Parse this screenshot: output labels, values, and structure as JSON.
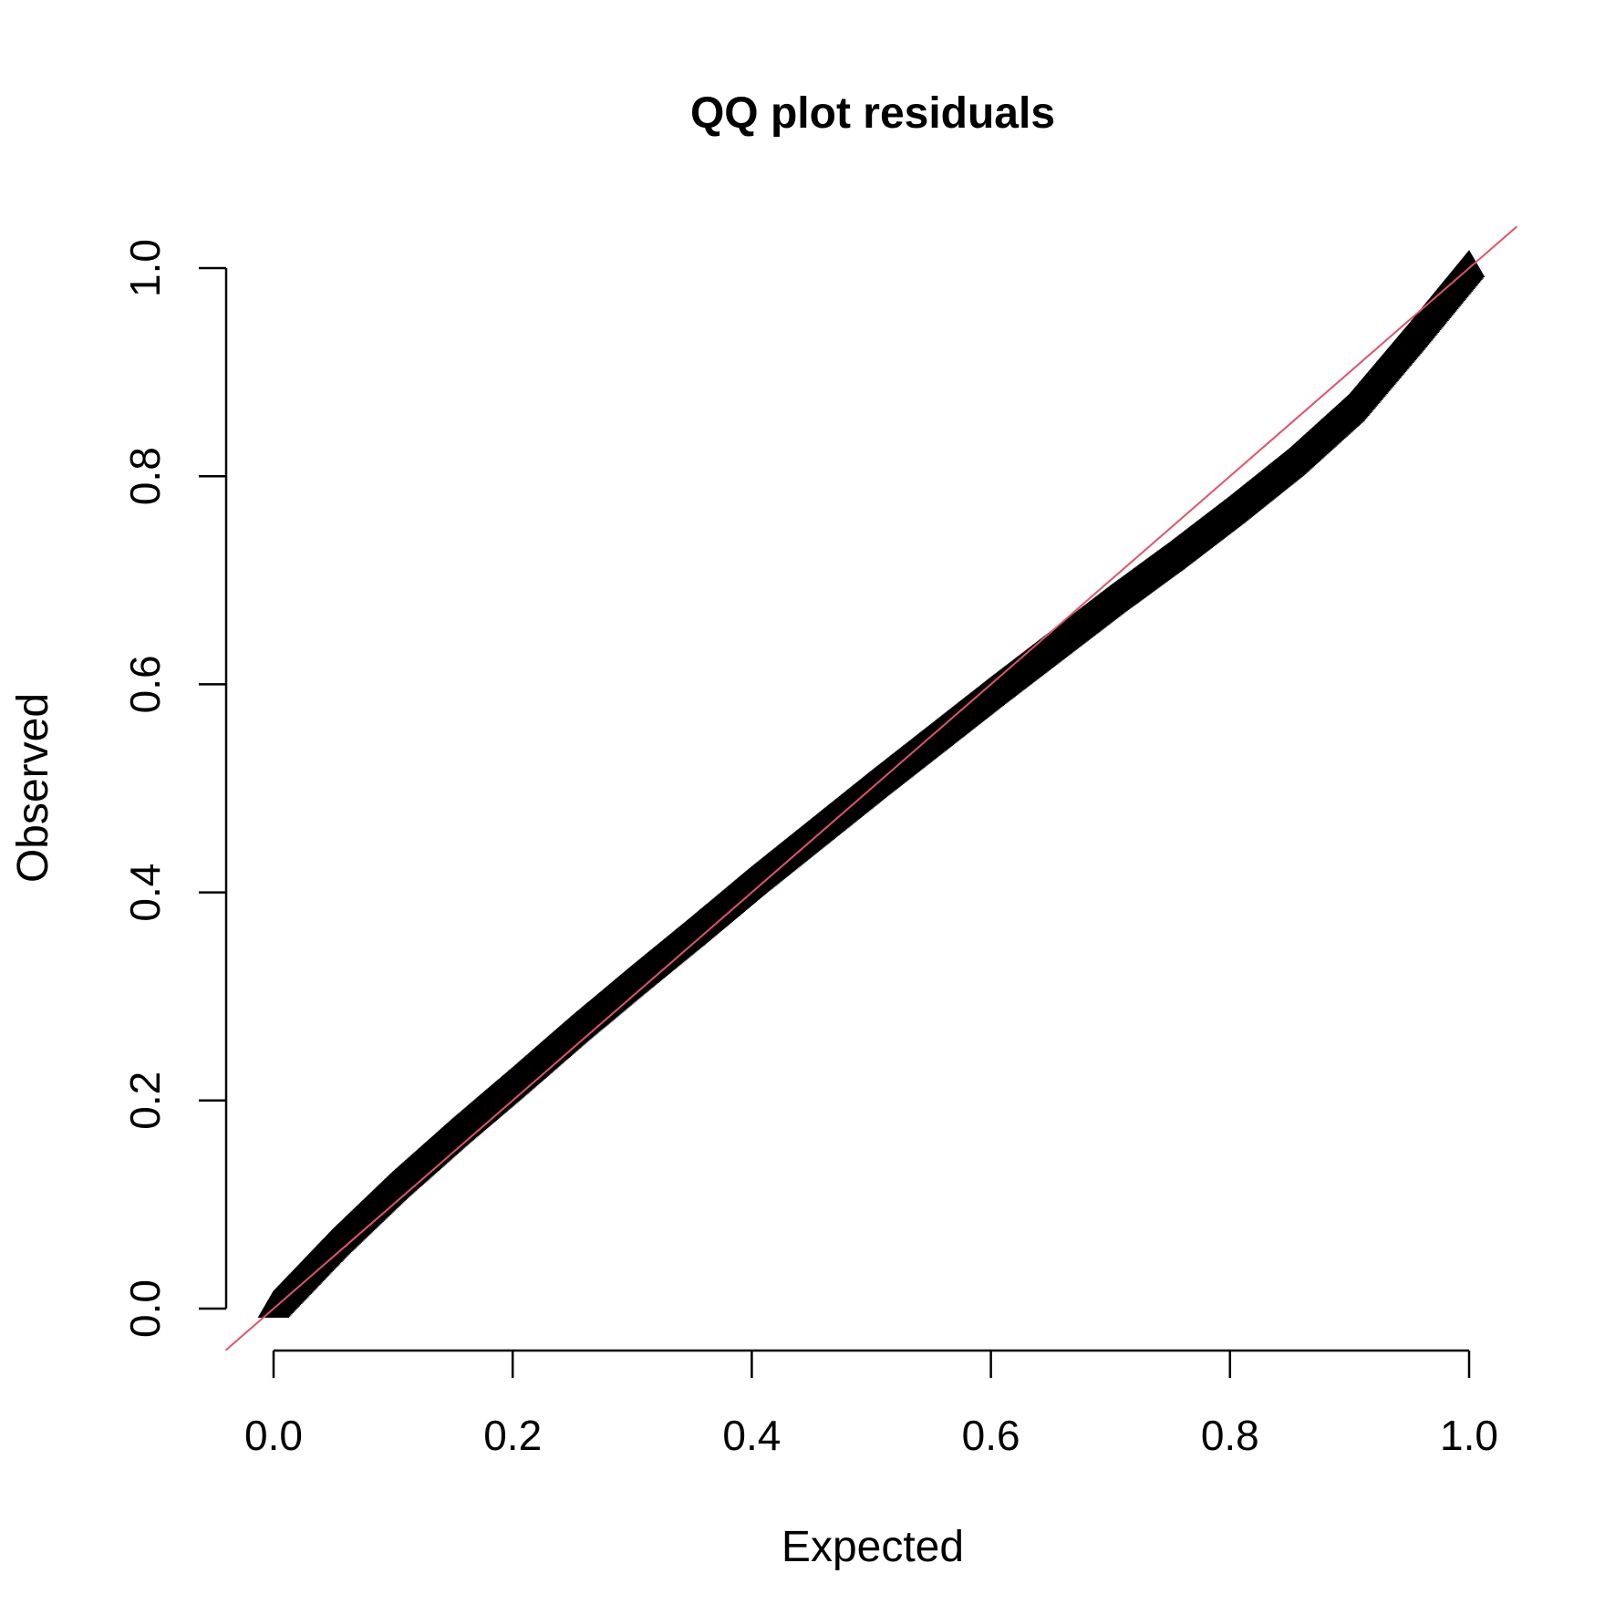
{
  "chart_data": {
    "type": "scatter",
    "title": "QQ plot residuals",
    "xlabel": "Expected",
    "ylabel": "Observed",
    "xlim": [
      0,
      1
    ],
    "ylim": [
      0,
      1
    ],
    "x_ticks": [
      "0.0",
      "0.2",
      "0.4",
      "0.6",
      "0.8",
      "1.0"
    ],
    "y_ticks": [
      "0.0",
      "0.2",
      "0.4",
      "0.6",
      "0.8",
      "1.0"
    ],
    "grid": false,
    "legend": "none",
    "series": [
      {
        "x": [
          0.0,
          0.025,
          0.05,
          0.1,
          0.15,
          0.2,
          0.25,
          0.3,
          0.35,
          0.4,
          0.45,
          0.5,
          0.55,
          0.6,
          0.65,
          0.7,
          0.75,
          0.8,
          0.85,
          0.9,
          0.95,
          1.0
        ],
        "y": [
          0.0,
          0.03,
          0.06,
          0.115,
          0.166,
          0.215,
          0.265,
          0.313,
          0.36,
          0.408,
          0.454,
          0.5,
          0.545,
          0.59,
          0.634,
          0.678,
          0.72,
          0.764,
          0.81,
          0.862,
          0.93,
          1.0
        ],
        "color": "#000000"
      }
    ],
    "reference_line": {
      "x": [
        -0.04,
        1.04
      ],
      "y": [
        -0.04,
        1.04
      ],
      "color": "#DF536B"
    }
  }
}
